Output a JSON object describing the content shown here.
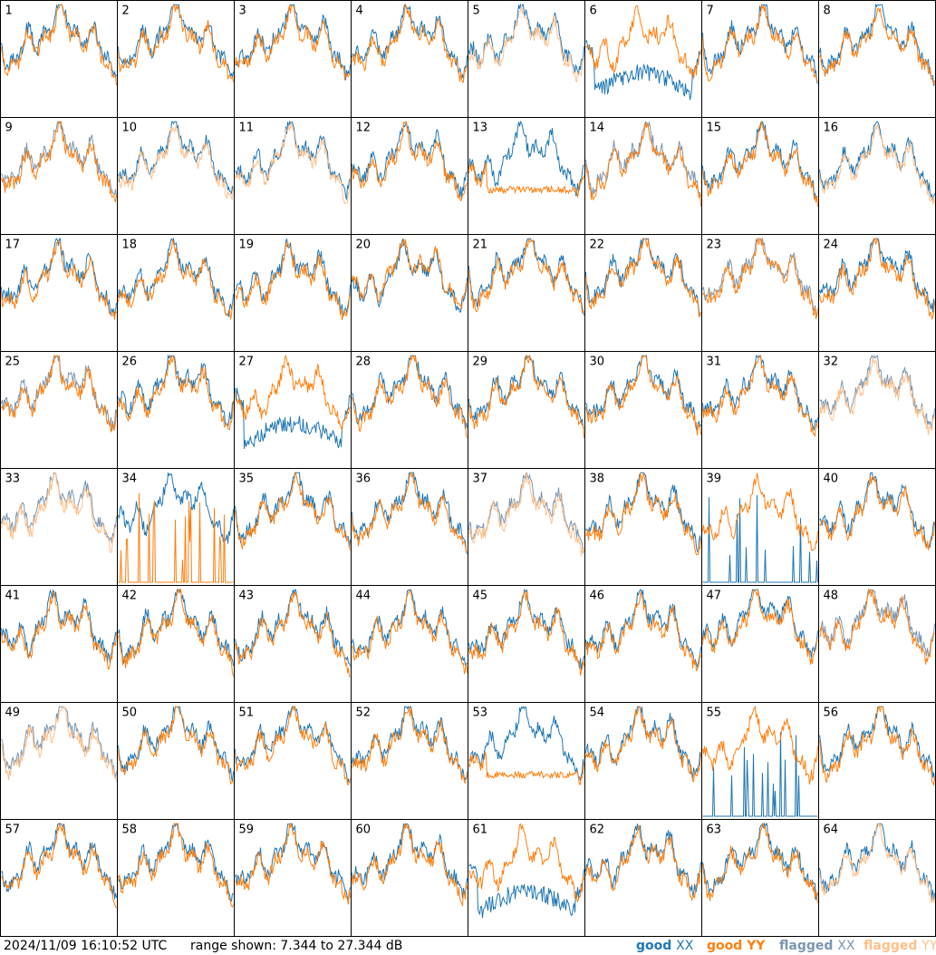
{
  "chart_data": {
    "type": "line",
    "panel_count": 64,
    "grid": {
      "rows": 8,
      "cols": 8
    },
    "panel_labels": [
      "1",
      "2",
      "3",
      "4",
      "5",
      "6",
      "7",
      "8",
      "9",
      "10",
      "11",
      "12",
      "13",
      "14",
      "15",
      "16",
      "17",
      "18",
      "19",
      "20",
      "21",
      "22",
      "23",
      "24",
      "25",
      "26",
      "27",
      "28",
      "29",
      "30",
      "31",
      "32",
      "33",
      "34",
      "35",
      "36",
      "37",
      "38",
      "39",
      "40",
      "41",
      "42",
      "43",
      "44",
      "45",
      "46",
      "47",
      "48",
      "49",
      "50",
      "51",
      "52",
      "53",
      "54",
      "55",
      "56",
      "57",
      "58",
      "59",
      "60",
      "61",
      "62",
      "63",
      "64"
    ],
    "ylim": [
      7.344,
      27.344
    ],
    "yunit": "dB",
    "series_styles": [
      {
        "name": "good XX",
        "color": "#1f77b4"
      },
      {
        "name": "good YY",
        "color": "#ff7f0e"
      },
      {
        "name": "flagged XX",
        "color": "#7b96b0"
      },
      {
        "name": "flagged YY",
        "color": "#ffc08a"
      }
    ],
    "panel_status": {
      "flagged_xx": [
        9,
        14,
        23,
        25,
        32,
        33,
        37,
        48,
        49
      ],
      "flagged_yy": [
        5,
        10,
        11,
        16,
        32,
        33,
        37,
        49,
        64
      ],
      "spiky_xx": [
        39,
        55
      ],
      "spiky_yy": [
        34
      ],
      "anomalous_yy_drop": [
        13,
        53
      ],
      "anomalous_xx_drop": [
        6,
        27,
        61
      ]
    }
  },
  "footer": {
    "timestamp": "2024/11/09 16:10:52 UTC",
    "range_text": "range shown: 7.344 to 27.344 dB"
  },
  "legend": {
    "good_prefix": "good",
    "flagged_prefix": "flagged",
    "xx": "XX",
    "yy": "YY"
  },
  "colors": {
    "good_xx": "#1f77b4",
    "good_yy": "#ff7f0e",
    "flagged_xx": "#7b96b0",
    "flagged_yy": "#ffc08a",
    "border": "#000000",
    "background": "#ffffff"
  }
}
